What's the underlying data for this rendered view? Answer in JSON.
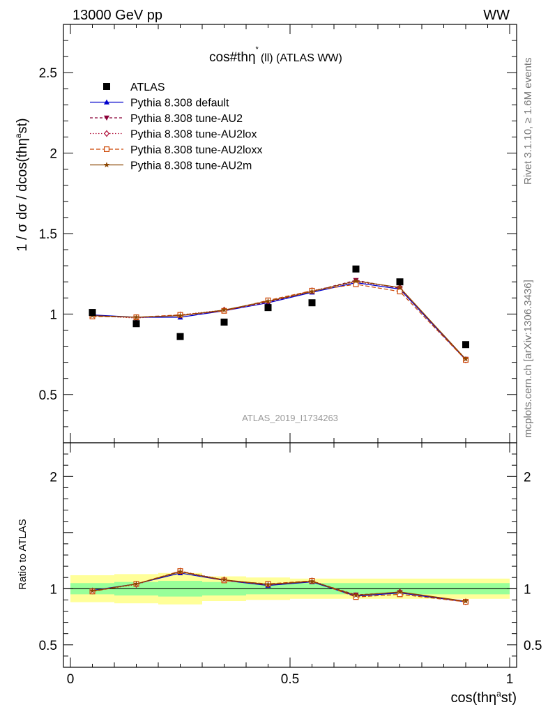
{
  "header": {
    "left": "13000 GeV pp",
    "right": "WW"
  },
  "side_text": {
    "rivet": "Rivet 3.1.10, ≥ 1.6M events",
    "mcplots": "mcplots.cern.ch [arXiv:1306.3436]"
  },
  "chart_data": {
    "type": "scatter",
    "title": "cos#thη* (ll) (ATLAS WW)",
    "title_main": "cos#thη",
    "title_sup": "*",
    "title_rest": "(ll) (ATLAS WW)",
    "watermark": "ATLAS_2019_I1734263",
    "ylabel": "1 / σ dσ / dcos(thη^ast)",
    "ylabel_main": "1 / σ dσ / dcos(thη",
    "ylabel_sup": "a",
    "ylabel_tail": "st)",
    "xlabel": "cos(thη^ast)",
    "xlabel_main": "cos(thη",
    "xlabel_sup": "a",
    "xlabel_tail": "st)",
    "ratio_ylabel": "Ratio to ATLAS",
    "xlim": [
      0,
      1
    ],
    "ylim": [
      0.2,
      2.8
    ],
    "ratio_ylim": [
      0.3,
      2.3
    ],
    "x_ticks": [
      {
        "value": 0,
        "label": "0"
      },
      {
        "value": 0.5,
        "label": "0.5"
      },
      {
        "value": 1,
        "label": "1"
      }
    ],
    "y_ticks": [
      {
        "value": 0.5,
        "label": "0.5"
      },
      {
        "value": 1,
        "label": "1"
      },
      {
        "value": 1.5,
        "label": "1.5"
      },
      {
        "value": 2,
        "label": "2"
      },
      {
        "value": 2.5,
        "label": "2.5"
      }
    ],
    "ratio_y_ticks": [
      {
        "value": 0.5,
        "label": "0.5"
      },
      {
        "value": 1,
        "label": "1"
      },
      {
        "value": 2,
        "label": "2"
      }
    ],
    "x": [
      0.05,
      0.15,
      0.25,
      0.35,
      0.45,
      0.55,
      0.65,
      0.75,
      0.9
    ],
    "bin_edges": [
      0,
      0.1,
      0.2,
      0.3,
      0.4,
      0.5,
      0.6,
      0.7,
      0.8,
      1.0
    ],
    "data": {
      "name": "ATLAS",
      "values": [
        1.01,
        0.94,
        0.86,
        0.95,
        1.04,
        1.07,
        1.28,
        1.2,
        0.81
      ],
      "band_inner": [
        [
          0.95,
          1.05
        ],
        [
          0.94,
          1.06
        ],
        [
          0.93,
          1.07
        ],
        [
          0.94,
          1.06
        ],
        [
          0.95,
          1.05
        ],
        [
          0.95,
          1.05
        ],
        [
          0.95,
          1.05
        ],
        [
          0.95,
          1.05
        ],
        [
          0.95,
          1.05
        ]
      ],
      "band_outer": [
        [
          0.88,
          1.12
        ],
        [
          0.87,
          1.13
        ],
        [
          0.86,
          1.14
        ],
        [
          0.89,
          1.11
        ],
        [
          0.9,
          1.1
        ],
        [
          0.91,
          1.09
        ],
        [
          0.91,
          1.09
        ],
        [
          0.91,
          1.09
        ],
        [
          0.91,
          1.09
        ]
      ]
    },
    "series": [
      {
        "name": "Pythia 8.308 default",
        "color": "#0000cc",
        "dash": "",
        "marker": "triangle-up",
        "values": [
          0.995,
          0.98,
          0.98,
          1.02,
          1.07,
          1.135,
          1.195,
          1.155,
          0.715
        ]
      },
      {
        "name": "Pythia 8.308 tune-AU2",
        "color": "#8b0038",
        "dash": "4,3",
        "marker": "triangle-down",
        "values": [
          0.99,
          0.98,
          0.99,
          1.02,
          1.075,
          1.14,
          1.21,
          1.16,
          0.72
        ]
      },
      {
        "name": "Pythia 8.308 tune-AU2lox",
        "color": "#b0103a",
        "dash": "1.5,2.5",
        "marker": "diamond-open",
        "values": [
          0.99,
          0.975,
          0.995,
          1.025,
          1.08,
          1.145,
          1.2,
          1.165,
          0.715
        ]
      },
      {
        "name": "Pythia 8.308 tune-AU2loxx",
        "color": "#cc4400",
        "dash": "6,3",
        "marker": "square-open",
        "values": [
          0.985,
          0.98,
          0.995,
          1.02,
          1.085,
          1.145,
          1.185,
          1.14,
          0.715
        ]
      },
      {
        "name": "Pythia 8.308 tune-AU2m",
        "color": "#8b4500",
        "dash": "",
        "marker": "star",
        "values": [
          0.99,
          0.98,
          0.99,
          1.025,
          1.08,
          1.14,
          1.205,
          1.165,
          0.72
        ]
      }
    ],
    "legend_position": "top-left"
  },
  "colors": {
    "band_inner": "#99ff99",
    "band_outer": "#ffff99",
    "data_marker": "#000000"
  }
}
